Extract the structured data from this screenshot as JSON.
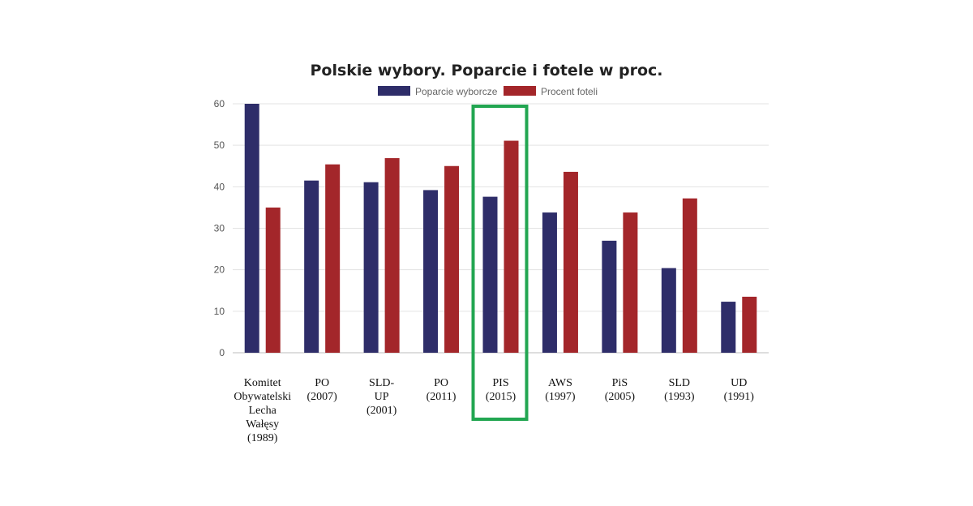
{
  "chart_data": {
    "type": "bar",
    "title": "Polskie wybory. Poparcie i fotele w proc.",
    "xlabel": "",
    "ylabel": "",
    "ylim": [
      0,
      60
    ],
    "yticks": [
      0,
      10,
      20,
      30,
      40,
      50,
      60
    ],
    "grid": true,
    "legend_position": "top",
    "categories": [
      [
        "Komitet",
        "Obywatelski",
        "Lecha",
        "Wałęsy",
        "(1989)"
      ],
      [
        "PO",
        "(2007)"
      ],
      [
        "SLD-",
        "UP",
        "(2001)"
      ],
      [
        "PO",
        "(2011)"
      ],
      [
        "PIS",
        "(2015)"
      ],
      [
        "AWS",
        "(1997)"
      ],
      [
        "PiS",
        "(2005)"
      ],
      [
        "SLD",
        "(1993)"
      ],
      [
        "UD",
        "(1991)"
      ]
    ],
    "series": [
      {
        "name": "Poparcie wyborcze",
        "color": "#2e2d69",
        "values": [
          60,
          41.5,
          41.1,
          39.2,
          37.6,
          33.8,
          27.0,
          20.4,
          12.3
        ]
      },
      {
        "name": "Procent foteli",
        "color": "#a3262a",
        "values": [
          35,
          45.4,
          46.9,
          45.0,
          51.1,
          43.6,
          33.8,
          37.2,
          13.5
        ]
      }
    ],
    "highlight": {
      "category_index": 4,
      "color": "#22a651"
    }
  }
}
